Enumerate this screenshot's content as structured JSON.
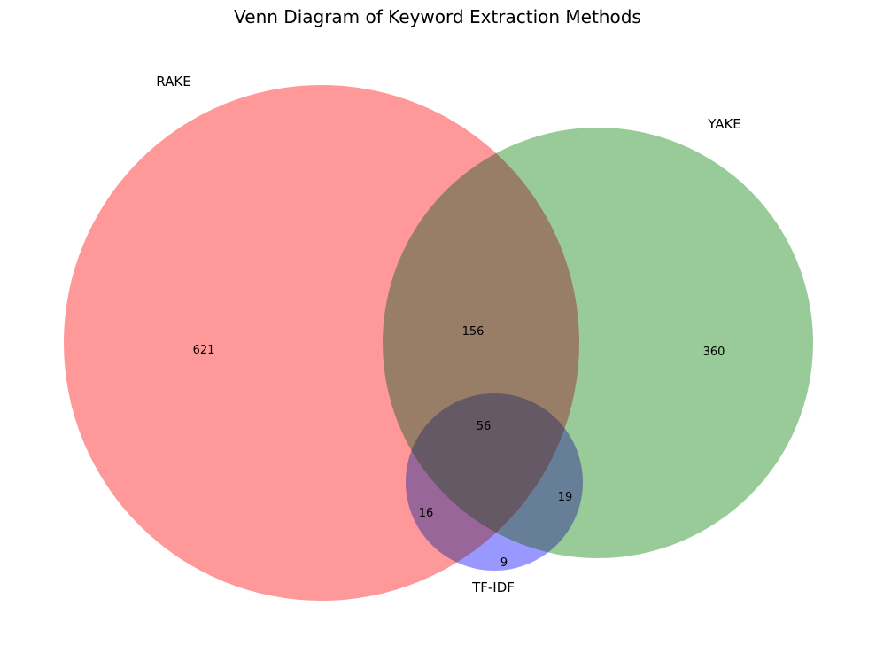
{
  "title": "Venn Diagram of Keyword Extraction Methods",
  "sets": [
    {
      "id": "rake",
      "label": "RAKE",
      "color": "#ff7f7f"
    },
    {
      "id": "yake",
      "label": "YAKE",
      "color": "#7fbf7f"
    },
    {
      "id": "tfidf",
      "label": "TF-IDF",
      "color": "#7f7fff"
    }
  ],
  "regions": {
    "rake_only": "621",
    "yake_only": "360",
    "tfidf_only": "9",
    "rake_yake": "156",
    "rake_tfidf": "16",
    "yake_tfidf": "19",
    "all_three": "56"
  }
}
